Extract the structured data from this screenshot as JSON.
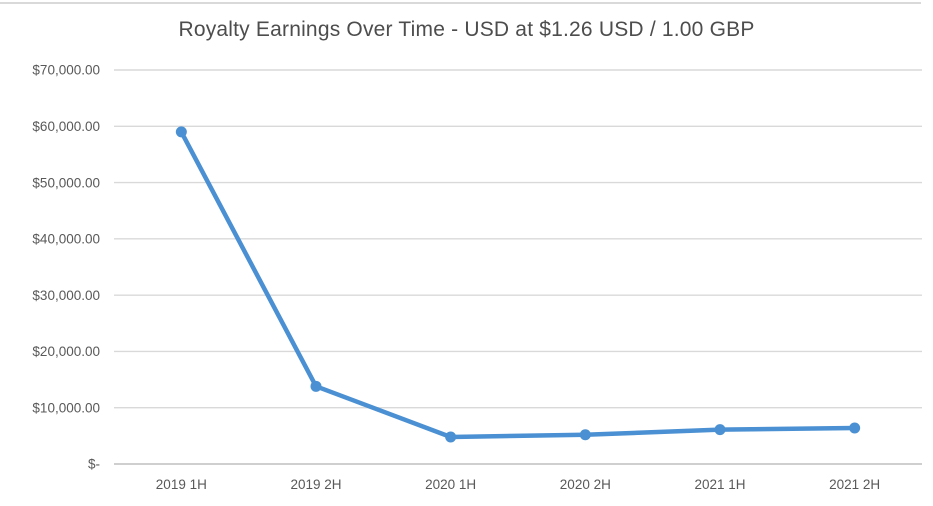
{
  "chart_data": {
    "type": "line",
    "title": "Royalty Earnings Over Time - USD at $1.26 USD / 1.00 GBP",
    "categories": [
      "2019 1H",
      "2019 2H",
      "2020 1H",
      "2020 2H",
      "2021 1H",
      "2021 2H"
    ],
    "values": [
      59000,
      13800,
      4800,
      5200,
      6100,
      6400
    ],
    "xlabel": "",
    "ylabel": "",
    "ylim": [
      0,
      70000
    ],
    "y_tick_interval": 10000,
    "y_tick_values": [
      0,
      10000,
      20000,
      30000,
      40000,
      50000,
      60000,
      70000
    ],
    "y_tick_labels": [
      "$-",
      "$10,000.00",
      "$20,000.00",
      "$30,000.00",
      "$40,000.00",
      "$50,000.00",
      "$60,000.00",
      "$70,000.00"
    ],
    "grid": true,
    "legend": "none",
    "colors": {
      "line": "#4a90d2",
      "marker": "#4a90d2",
      "gridline": "#d9d9d9",
      "axis_line": "#bfbfbf",
      "tick_label": "#595959",
      "title": "#4d4d4d",
      "background": "#ffffff",
      "top_edge": "#d9d9d9"
    }
  }
}
